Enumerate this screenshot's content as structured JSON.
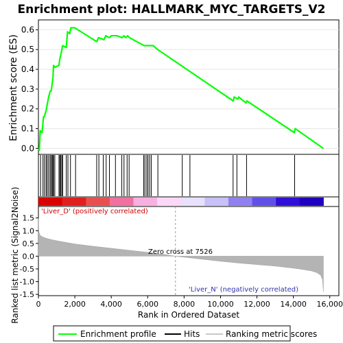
{
  "chart_data": {
    "type": "line",
    "title": "Enrichment plot: HALLMARK_MYC_TARGETS_V2",
    "xlabel": "Rank in Ordered Dataset",
    "ylabel_top": "Enrichment score (ES)",
    "ylabel_bottom": "Ranked list metric (Signal2Noise)",
    "x_ticks": [
      0,
      2000,
      4000,
      6000,
      8000,
      10000,
      12000,
      14000,
      16000
    ],
    "x_tick_labels": [
      "0",
      "2,000",
      "4,000",
      "6,000",
      "8,000",
      "10,000",
      "12,000",
      "14,000",
      "16,000"
    ],
    "xlim": [
      0,
      16500
    ],
    "es_ylim": [
      -0.03,
      0.65
    ],
    "es_ticks": [
      0.0,
      0.1,
      0.2,
      0.3,
      0.4,
      0.5,
      0.6
    ],
    "es_tick_labels": [
      "0.0",
      "0.1",
      "0.2",
      "0.3",
      "0.4",
      "0.5",
      "0.6"
    ],
    "metric_ylim": [
      -1.55,
      1.95
    ],
    "metric_ticks": [
      1.5,
      1.0,
      0.5,
      0.0,
      -0.5,
      -1.0,
      -1.5
    ],
    "metric_tick_labels": [
      "1.5",
      "1.0",
      "0.5",
      "0.0",
      "-0.5",
      "-1.0",
      "-1.5"
    ],
    "enrichment_profile": {
      "x": [
        0,
        50,
        100,
        200,
        280,
        320,
        420,
        480,
        560,
        650,
        700,
        760,
        800,
        830,
        900,
        1130,
        1170,
        1220,
        1290,
        1330,
        1530,
        1600,
        1720,
        1780,
        2000,
        3200,
        3300,
        3600,
        3700,
        3900,
        4000,
        4300,
        4600,
        4700,
        4800,
        4900,
        5000,
        5800,
        5900,
        6100,
        6300,
        6550,
        10700,
        10750,
        10950,
        11000,
        11400,
        11450,
        14050,
        14100,
        15650
      ],
      "y": [
        0.0,
        -0.01,
        0.09,
        0.08,
        0.16,
        0.16,
        0.19,
        0.22,
        0.26,
        0.29,
        0.29,
        0.33,
        0.36,
        0.42,
        0.41,
        0.42,
        0.45,
        0.47,
        0.5,
        0.52,
        0.51,
        0.59,
        0.58,
        0.61,
        0.61,
        0.54,
        0.56,
        0.55,
        0.57,
        0.56,
        0.57,
        0.57,
        0.56,
        0.57,
        0.56,
        0.57,
        0.56,
        0.52,
        0.52,
        0.52,
        0.52,
        0.5,
        0.24,
        0.26,
        0.25,
        0.26,
        0.23,
        0.24,
        0.08,
        0.1,
        0.0
      ],
      "color": "#00ff00"
    },
    "hits": [
      120,
      250,
      330,
      420,
      480,
      560,
      640,
      700,
      760,
      800,
      830,
      900,
      1130,
      1180,
      1230,
      1290,
      1330,
      1530,
      1620,
      1760,
      2040,
      3200,
      3320,
      3560,
      3720,
      3900,
      4230,
      4580,
      4700,
      4870,
      4980,
      5780,
      5850,
      5950,
      6020,
      6110,
      6200,
      6560,
      7900,
      8320,
      10690,
      10900,
      11430,
      14070
    ],
    "metric_curve": {
      "x": [
        0,
        15,
        40,
        80,
        150,
        250,
        400,
        600,
        900,
        1200,
        1600,
        2000,
        3000,
        4000,
        5000,
        6000,
        7000,
        7526,
        8000,
        9000,
        10000,
        11000,
        12000,
        13000,
        14000,
        14500,
        15000,
        15300,
        15500,
        15600,
        15650
      ],
      "y": [
        1.5,
        1.05,
        0.92,
        0.84,
        0.79,
        0.75,
        0.71,
        0.67,
        0.62,
        0.58,
        0.53,
        0.48,
        0.39,
        0.31,
        0.23,
        0.15,
        0.06,
        0.0,
        -0.04,
        -0.12,
        -0.2,
        -0.27,
        -0.33,
        -0.39,
        -0.47,
        -0.52,
        -0.58,
        -0.65,
        -0.75,
        -0.92,
        -1.4
      ]
    },
    "heatmap_colors": [
      "#d90000",
      "#e02020",
      "#e85050",
      "#f070a0",
      "#f8b0e0",
      "#fcd8f8",
      "#e8e0fc",
      "#c8c0f8",
      "#9080f0",
      "#6050e8",
      "#3010d8",
      "#2000c0"
    ],
    "zero_cross_rank": 7526,
    "zero_cross_label": "Zero cross at 7526",
    "pos_label": "'Liver_D' (positively correlated)",
    "neg_label": "'Liver_N' (negatively correlated)",
    "legend": [
      {
        "label": "Enrichment profile",
        "color": "#00ff00"
      },
      {
        "label": "Hits",
        "color": "#000000"
      },
      {
        "label": "Ranking metric scores",
        "color": "#c8c8c8"
      }
    ]
  }
}
